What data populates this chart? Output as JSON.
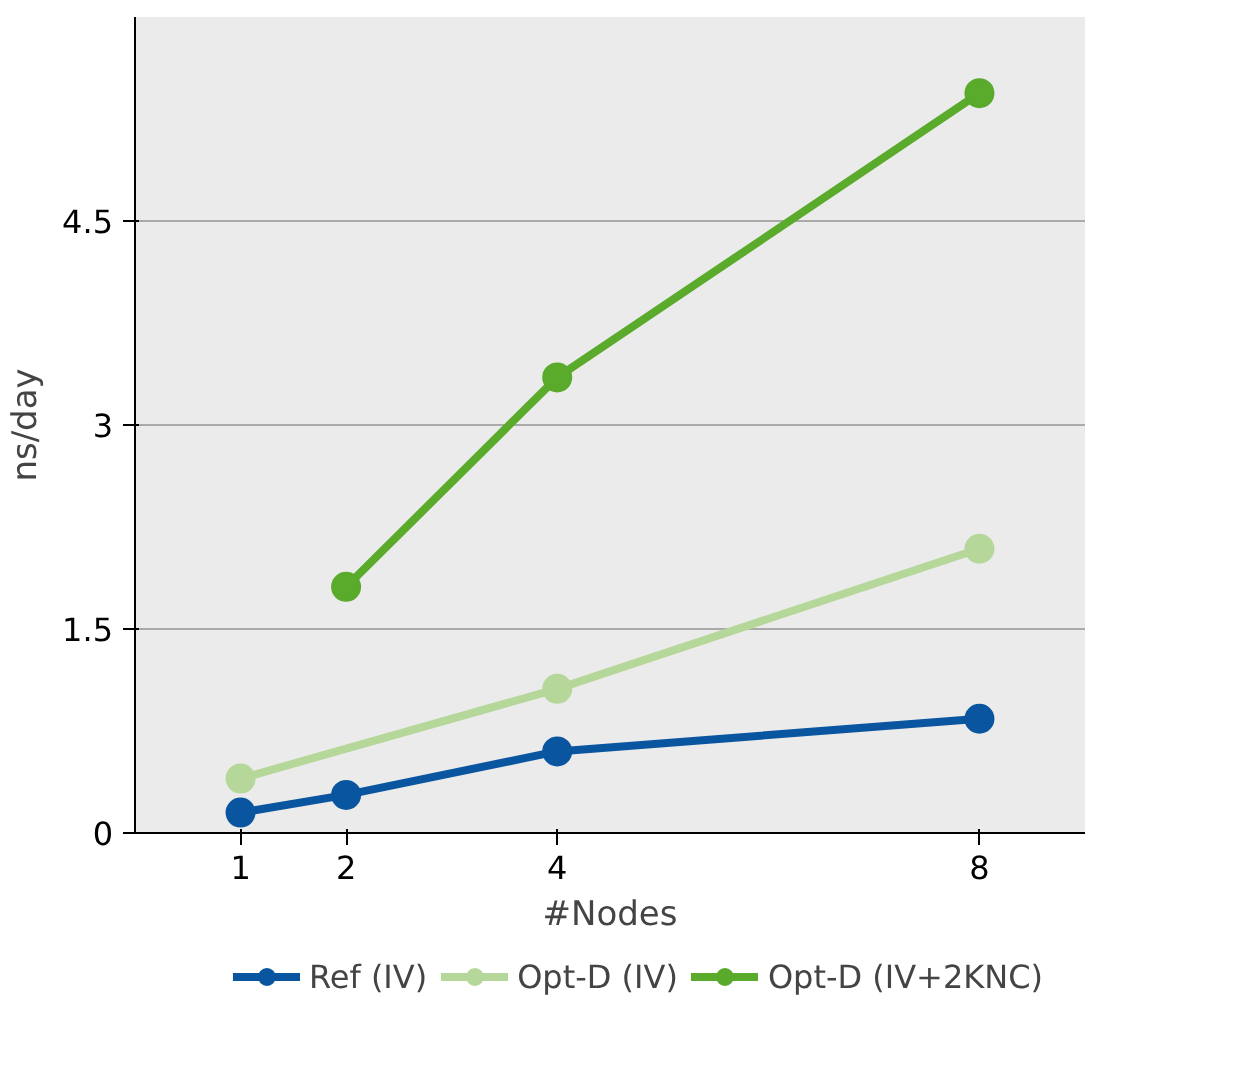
{
  "chart_data": {
    "type": "line",
    "xlabel": "#Nodes",
    "ylabel": "ns/day",
    "xlim": [
      0,
      9
    ],
    "xticks": [
      1,
      2,
      4,
      8
    ],
    "ylim": [
      0,
      6
    ],
    "yticks": [
      0,
      1.5,
      3,
      4.5
    ],
    "grid": "y",
    "legend": "bottom",
    "marker": "circle",
    "line_style": "solid",
    "series": [
      {
        "name": "Ref (IV)",
        "color": "#0a559f",
        "x": [
          1,
          2,
          4,
          8
        ],
        "values": [
          0.15,
          0.28,
          0.6,
          0.84
        ]
      },
      {
        "name": "Opt-D (IV)",
        "color": "#b5d89a",
        "x": [
          1,
          4,
          8
        ],
        "values": [
          0.4,
          1.06,
          2.09
        ]
      },
      {
        "name": "Opt-D (IV+2KNC)",
        "color": "#5aaa2c",
        "x": [
          2,
          4,
          8
        ],
        "values": [
          1.81,
          3.35,
          5.44
        ]
      }
    ]
  }
}
